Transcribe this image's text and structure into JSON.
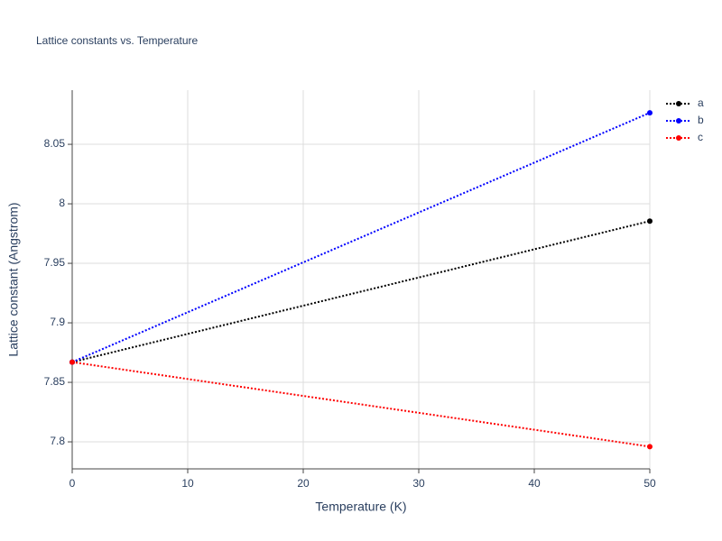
{
  "chart_data": {
    "type": "line",
    "title": "Lattice constants vs. Temperature",
    "x_label": "Temperature (K)",
    "y_label": "Lattice constant (Angstrom)",
    "x": [
      0,
      50
    ],
    "series": [
      {
        "name": "a",
        "color": "#000000",
        "values": [
          7.867,
          7.9855
        ]
      },
      {
        "name": "b",
        "color": "#0000ff",
        "values": [
          7.867,
          8.0765
        ]
      },
      {
        "name": "c",
        "color": "#ff0000",
        "values": [
          7.867,
          7.796
        ]
      }
    ],
    "xlim": [
      0,
      50
    ],
    "xticks": [
      0,
      10,
      20,
      30,
      40,
      50
    ],
    "ylim": [
      7.7773,
      8.0955
    ],
    "yticks": [
      7.8,
      7.85,
      7.9,
      7.95,
      8,
      8.05
    ],
    "grid": true,
    "line_style": "dot",
    "legend_position": "top-right"
  }
}
